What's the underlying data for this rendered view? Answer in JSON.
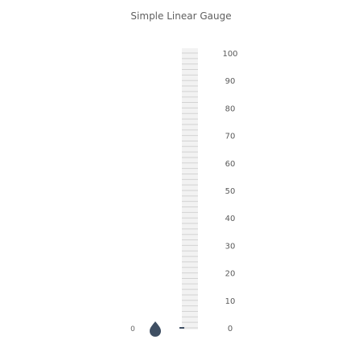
{
  "chart_data": {
    "type": "linear-gauge",
    "title": "Simple Linear Gauge",
    "scale": {
      "min": 0,
      "max": 100,
      "major_ticks": [
        0,
        10,
        20,
        30,
        40,
        50,
        60,
        70,
        80,
        90,
        100
      ],
      "minor_tick_step": 2
    },
    "value": 0,
    "value_label": "0",
    "colors": {
      "title": "#5f5f5f",
      "tick_label": "#5a5a5a",
      "track": "#f2f2f2",
      "tick": "#d3d3d3",
      "pointer": "#3f4f63"
    }
  }
}
